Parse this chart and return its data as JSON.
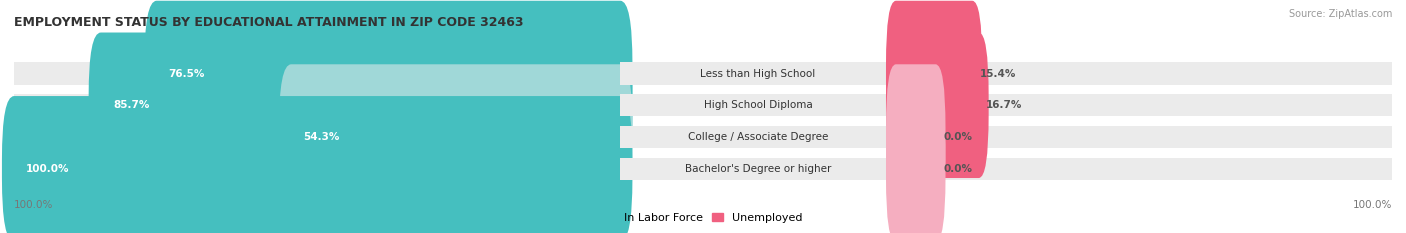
{
  "title": "EMPLOYMENT STATUS BY EDUCATIONAL ATTAINMENT IN ZIP CODE 32463",
  "source": "Source: ZipAtlas.com",
  "categories": [
    "Less than High School",
    "High School Diploma",
    "College / Associate Degree",
    "Bachelor's Degree or higher"
  ],
  "labor_force_pct": [
    76.5,
    85.7,
    54.3,
    100.0
  ],
  "unemployed_pct": [
    15.4,
    16.7,
    0.0,
    0.0
  ],
  "labor_force_color_dark": "#45bfbf",
  "labor_force_color_light": "#a0d8d8",
  "unemployed_color_dark": "#f06080",
  "unemployed_color_light": "#f5aec0",
  "title_fontsize": 9,
  "label_fontsize": 7.5,
  "cat_fontsize": 7.5,
  "legend_fontsize": 8,
  "source_fontsize": 7,
  "axis_label": "100.0%",
  "max_value": 100.0,
  "bar_height": 0.58,
  "row_bg_color": "#eeeeee",
  "background_color": "#ffffff",
  "lf_label_white_threshold": 20,
  "small_un_bar_width": 8.0
}
